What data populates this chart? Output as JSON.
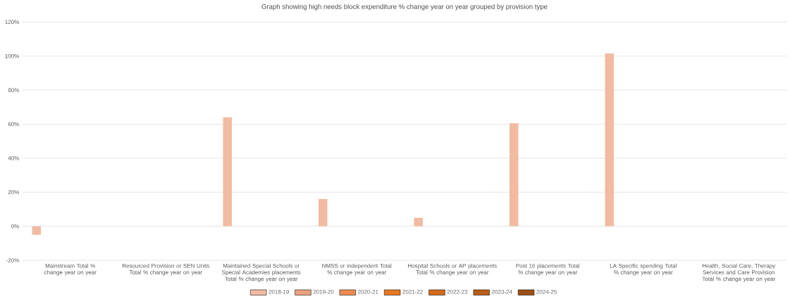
{
  "chart_data": {
    "type": "bar",
    "title": "Graph showing high needs block expenditure % change year on year grouped by provision type",
    "categories": [
      "Mainstream Total % change year on year",
      "Resourced Provision or SEN Units Total % change year on year",
      "Maintained Special Schools or Special Academies placements Total % change year on year",
      "NMSS or independent Total % change year on year",
      "Hospital Schools or AP placements Total % change year on year",
      "Post 16 placements Total % change year on year",
      "LA Specific spending Total % change year on year",
      "Health, Social Care, Therapy Services and Care Provision Total % change year on year"
    ],
    "series": [
      {
        "name": "2018-19",
        "color": "#f1bba2",
        "values": [
          -5,
          null,
          64,
          16,
          5,
          60.5,
          101.5,
          null
        ]
      },
      {
        "name": "2019-20",
        "color": "#eca17f",
        "values": [
          null,
          null,
          null,
          null,
          null,
          null,
          null,
          null
        ]
      },
      {
        "name": "2020-21",
        "color": "#ee8a52",
        "values": [
          null,
          null,
          null,
          null,
          null,
          null,
          null,
          null
        ]
      },
      {
        "name": "2021-22",
        "color": "#e8781f",
        "values": [
          null,
          null,
          null,
          null,
          null,
          null,
          null,
          null
        ]
      },
      {
        "name": "2022-23",
        "color": "#d36b1b",
        "values": [
          null,
          null,
          null,
          null,
          null,
          null,
          null,
          null
        ]
      },
      {
        "name": "2023-24",
        "color": "#b85d17",
        "values": [
          null,
          null,
          null,
          null,
          null,
          null,
          null,
          null
        ]
      },
      {
        "name": "2024-25",
        "color": "#9c4f13",
        "values": [
          null,
          null,
          null,
          null,
          null,
          null,
          null,
          null
        ]
      }
    ],
    "ylim": [
      -20,
      120
    ],
    "yticks": [
      {
        "value": -20,
        "label": "-20%"
      },
      {
        "value": 0,
        "label": "0%"
      },
      {
        "value": 20,
        "label": "20%"
      },
      {
        "value": 40,
        "label": "40%"
      },
      {
        "value": 60,
        "label": "60%"
      },
      {
        "value": 80,
        "label": "80%"
      },
      {
        "value": 100,
        "label": "100%"
      },
      {
        "value": 120,
        "label": "120%"
      }
    ],
    "grid": "y",
    "legend": "bottom"
  }
}
